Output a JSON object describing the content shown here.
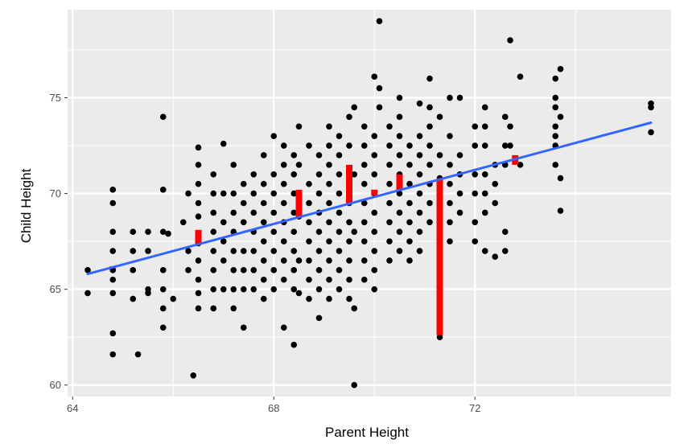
{
  "chart_data": {
    "type": "scatter",
    "xlabel": "Parent Height",
    "ylabel": "Child Height",
    "xlim": [
      63.9,
      75.9
    ],
    "ylim": [
      59.4,
      79.6
    ],
    "x_ticks": [
      64,
      68,
      72
    ],
    "x_tick_labels": [
      "64",
      "68",
      "72"
    ],
    "y_ticks": [
      60,
      65,
      70,
      75
    ],
    "y_tick_labels": [
      "60",
      "65",
      "70",
      "75"
    ],
    "grid": true,
    "legend": "none",
    "colors": {
      "panel": "#ebebeb",
      "grid": "#ffffff",
      "points": "#000000",
      "fit_line": "#3366ff",
      "residuals": "#ff0000"
    },
    "fit_line": {
      "x": [
        64.3,
        75.5
      ],
      "y": [
        65.8,
        73.7
      ]
    },
    "residual_segments": [
      {
        "x": 64.8,
        "y_from": 66.1,
        "y_to": 66.2
      },
      {
        "x": 66.5,
        "y_from": 67.4,
        "y_to": 68.1
      },
      {
        "x": 68.5,
        "y_from": 68.8,
        "y_to": 70.2
      },
      {
        "x": 69.5,
        "y_from": 69.5,
        "y_to": 71.5
      },
      {
        "x": 70.0,
        "y_from": 69.9,
        "y_to": 70.2
      },
      {
        "x": 70.5,
        "y_from": 70.2,
        "y_to": 71.0
      },
      {
        "x": 71.3,
        "y_from": 62.6,
        "y_to": 70.8
      },
      {
        "x": 72.8,
        "y_from": 71.5,
        "y_to": 72.0
      }
    ],
    "points": [
      [
        64.3,
        66.0
      ],
      [
        64.3,
        64.8
      ],
      [
        64.8,
        70.2
      ],
      [
        64.8,
        69.5
      ],
      [
        64.8,
        68.0
      ],
      [
        64.8,
        67.0
      ],
      [
        64.8,
        66.0
      ],
      [
        64.8,
        65.5
      ],
      [
        64.8,
        64.8
      ],
      [
        64.8,
        62.7
      ],
      [
        64.8,
        61.6
      ],
      [
        65.2,
        68.0
      ],
      [
        65.2,
        67.0
      ],
      [
        65.2,
        66.0
      ],
      [
        65.2,
        64.5
      ],
      [
        65.3,
        61.6
      ],
      [
        65.5,
        68.0
      ],
      [
        65.5,
        67.0
      ],
      [
        65.5,
        65.0
      ],
      [
        65.5,
        64.8
      ],
      [
        65.8,
        74.0
      ],
      [
        65.8,
        70.2
      ],
      [
        65.8,
        68.0
      ],
      [
        65.8,
        66.0
      ],
      [
        65.8,
        65.0
      ],
      [
        65.8,
        64.0
      ],
      [
        65.8,
        63.0
      ],
      [
        65.9,
        67.9
      ],
      [
        66.0,
        64.5
      ],
      [
        66.2,
        68.5
      ],
      [
        66.3,
        70.0
      ],
      [
        66.3,
        67.0
      ],
      [
        66.3,
        66.0
      ],
      [
        66.5,
        72.4
      ],
      [
        66.5,
        71.5
      ],
      [
        66.5,
        70.5
      ],
      [
        66.5,
        69.5
      ],
      [
        66.5,
        68.8
      ],
      [
        66.5,
        67.4
      ],
      [
        66.5,
        66.5
      ],
      [
        66.5,
        65.5
      ],
      [
        66.5,
        64.8
      ],
      [
        66.5,
        64.0
      ],
      [
        66.4,
        60.5
      ],
      [
        66.8,
        71.0
      ],
      [
        66.8,
        70.0
      ],
      [
        66.8,
        69.0
      ],
      [
        66.8,
        68.0
      ],
      [
        66.8,
        67.0
      ],
      [
        66.8,
        66.0
      ],
      [
        66.8,
        65.0
      ],
      [
        66.8,
        64.0
      ],
      [
        67.0,
        72.6
      ],
      [
        67.0,
        70.0
      ],
      [
        67.0,
        68.5
      ],
      [
        67.0,
        67.5
      ],
      [
        67.0,
        66.5
      ],
      [
        67.0,
        65.0
      ],
      [
        67.2,
        71.5
      ],
      [
        67.2,
        70.0
      ],
      [
        67.2,
        69.0
      ],
      [
        67.2,
        68.0
      ],
      [
        67.2,
        67.0
      ],
      [
        67.2,
        66.0
      ],
      [
        67.2,
        65.0
      ],
      [
        67.2,
        64.0
      ],
      [
        67.4,
        70.5
      ],
      [
        67.4,
        69.5
      ],
      [
        67.4,
        68.5
      ],
      [
        67.4,
        67.0
      ],
      [
        67.4,
        66.0
      ],
      [
        67.4,
        65.0
      ],
      [
        67.4,
        63.0
      ],
      [
        67.6,
        71.0
      ],
      [
        67.6,
        70.0
      ],
      [
        67.6,
        69.0
      ],
      [
        67.6,
        68.0
      ],
      [
        67.6,
        67.0
      ],
      [
        67.6,
        66.0
      ],
      [
        67.6,
        65.0
      ],
      [
        67.8,
        72.0
      ],
      [
        67.8,
        70.5
      ],
      [
        67.8,
        69.5
      ],
      [
        67.8,
        68.5
      ],
      [
        67.8,
        67.5
      ],
      [
        67.8,
        66.5
      ],
      [
        67.8,
        65.5
      ],
      [
        67.8,
        64.5
      ],
      [
        68.0,
        73.0
      ],
      [
        68.0,
        71.0
      ],
      [
        68.0,
        70.0
      ],
      [
        68.0,
        69.0
      ],
      [
        68.0,
        68.0
      ],
      [
        68.0,
        67.0
      ],
      [
        68.0,
        66.0
      ],
      [
        68.0,
        65.0
      ],
      [
        68.2,
        72.5
      ],
      [
        68.2,
        71.5
      ],
      [
        68.2,
        70.5
      ],
      [
        68.2,
        69.5
      ],
      [
        68.2,
        68.5
      ],
      [
        68.2,
        67.5
      ],
      [
        68.2,
        66.5
      ],
      [
        68.2,
        65.5
      ],
      [
        68.2,
        63.0
      ],
      [
        68.4,
        72.0
      ],
      [
        68.4,
        71.0
      ],
      [
        68.4,
        70.0
      ],
      [
        68.4,
        69.0
      ],
      [
        68.4,
        68.0
      ],
      [
        68.4,
        67.0
      ],
      [
        68.4,
        66.0
      ],
      [
        68.4,
        65.0
      ],
      [
        68.4,
        62.1
      ],
      [
        68.5,
        73.5
      ],
      [
        68.5,
        71.5
      ],
      [
        68.5,
        68.8
      ],
      [
        68.5,
        66.5
      ],
      [
        68.5,
        64.8
      ],
      [
        68.7,
        72.5
      ],
      [
        68.7,
        70.5
      ],
      [
        68.7,
        69.5
      ],
      [
        68.7,
        68.5
      ],
      [
        68.7,
        67.5
      ],
      [
        68.7,
        66.5
      ],
      [
        68.7,
        65.5
      ],
      [
        68.7,
        64.5
      ],
      [
        68.9,
        72.0
      ],
      [
        68.9,
        71.0
      ],
      [
        68.9,
        70.0
      ],
      [
        68.9,
        69.0
      ],
      [
        68.9,
        68.0
      ],
      [
        68.9,
        67.0
      ],
      [
        68.9,
        66.0
      ],
      [
        68.9,
        65.0
      ],
      [
        68.9,
        63.5
      ],
      [
        69.1,
        73.5
      ],
      [
        69.1,
        72.5
      ],
      [
        69.1,
        71.5
      ],
      [
        69.1,
        70.5
      ],
      [
        69.1,
        69.5
      ],
      [
        69.1,
        68.5
      ],
      [
        69.1,
        67.5
      ],
      [
        69.1,
        66.5
      ],
      [
        69.1,
        65.5
      ],
      [
        69.1,
        64.5
      ],
      [
        69.3,
        73.0
      ],
      [
        69.3,
        72.0
      ],
      [
        69.3,
        71.0
      ],
      [
        69.3,
        70.0
      ],
      [
        69.3,
        69.0
      ],
      [
        69.3,
        68.0
      ],
      [
        69.3,
        67.0
      ],
      [
        69.3,
        66.0
      ],
      [
        69.3,
        65.0
      ],
      [
        69.5,
        74.0
      ],
      [
        69.5,
        72.5
      ],
      [
        69.5,
        70.5
      ],
      [
        69.5,
        69.5
      ],
      [
        69.5,
        68.5
      ],
      [
        69.5,
        67.5
      ],
      [
        69.5,
        66.5
      ],
      [
        69.5,
        65.5
      ],
      [
        69.5,
        64.5
      ],
      [
        69.6,
        74.5
      ],
      [
        69.6,
        71.0
      ],
      [
        69.6,
        68.0
      ],
      [
        69.6,
        64.0
      ],
      [
        69.6,
        60.0
      ],
      [
        69.8,
        73.5
      ],
      [
        69.8,
        72.5
      ],
      [
        69.8,
        71.5
      ],
      [
        69.8,
        70.5
      ],
      [
        69.8,
        69.5
      ],
      [
        69.8,
        68.5
      ],
      [
        69.8,
        67.5
      ],
      [
        69.8,
        66.5
      ],
      [
        69.8,
        65.5
      ],
      [
        70.0,
        76.1
      ],
      [
        70.0,
        73.0
      ],
      [
        70.0,
        72.0
      ],
      [
        70.0,
        71.0
      ],
      [
        70.0,
        70.0
      ],
      [
        70.0,
        69.0
      ],
      [
        70.0,
        68.0
      ],
      [
        70.0,
        67.0
      ],
      [
        70.0,
        66.0
      ],
      [
        70.0,
        65.0
      ],
      [
        70.1,
        79.0
      ],
      [
        70.1,
        75.5
      ],
      [
        70.1,
        74.5
      ],
      [
        70.3,
        73.5
      ],
      [
        70.3,
        72.5
      ],
      [
        70.3,
        71.5
      ],
      [
        70.3,
        70.5
      ],
      [
        70.3,
        69.5
      ],
      [
        70.3,
        68.5
      ],
      [
        70.3,
        67.5
      ],
      [
        70.3,
        66.5
      ],
      [
        70.5,
        75.0
      ],
      [
        70.5,
        74.0
      ],
      [
        70.5,
        73.0
      ],
      [
        70.5,
        72.0
      ],
      [
        70.5,
        71.0
      ],
      [
        70.5,
        70.0
      ],
      [
        70.5,
        69.0
      ],
      [
        70.5,
        68.0
      ],
      [
        70.5,
        67.0
      ],
      [
        70.7,
        72.5
      ],
      [
        70.7,
        71.5
      ],
      [
        70.7,
        70.5
      ],
      [
        70.7,
        69.5
      ],
      [
        70.7,
        68.5
      ],
      [
        70.7,
        67.5
      ],
      [
        70.7,
        66.5
      ],
      [
        70.9,
        74.7
      ],
      [
        70.9,
        73.0
      ],
      [
        70.9,
        72.0
      ],
      [
        70.9,
        71.0
      ],
      [
        70.9,
        70.0
      ],
      [
        70.9,
        69.0
      ],
      [
        70.9,
        68.0
      ],
      [
        70.9,
        67.0
      ],
      [
        71.1,
        76.0
      ],
      [
        71.1,
        74.5
      ],
      [
        71.1,
        73.5
      ],
      [
        71.1,
        72.5
      ],
      [
        71.1,
        71.5
      ],
      [
        71.1,
        70.5
      ],
      [
        71.1,
        69.5
      ],
      [
        71.1,
        68.5
      ],
      [
        71.3,
        74.0
      ],
      [
        71.3,
        72.0
      ],
      [
        71.3,
        70.8
      ],
      [
        71.3,
        70.0
      ],
      [
        71.3,
        69.0
      ],
      [
        71.3,
        62.5
      ],
      [
        71.5,
        75.0
      ],
      [
        71.5,
        73.0
      ],
      [
        71.5,
        71.5
      ],
      [
        71.5,
        70.5
      ],
      [
        71.5,
        69.5
      ],
      [
        71.5,
        68.5
      ],
      [
        71.5,
        67.5
      ],
      [
        71.7,
        75.0
      ],
      [
        71.7,
        72.0
      ],
      [
        71.7,
        71.0
      ],
      [
        71.7,
        70.0
      ],
      [
        71.7,
        69.0
      ],
      [
        72.0,
        73.5
      ],
      [
        72.0,
        72.5
      ],
      [
        72.0,
        71.0
      ],
      [
        72.0,
        70.0
      ],
      [
        72.0,
        68.5
      ],
      [
        72.0,
        67.5
      ],
      [
        72.2,
        74.5
      ],
      [
        72.2,
        73.5
      ],
      [
        72.2,
        72.5
      ],
      [
        72.2,
        71.0
      ],
      [
        72.2,
        70.0
      ],
      [
        72.2,
        69.0
      ],
      [
        72.2,
        67.0
      ],
      [
        72.4,
        71.5
      ],
      [
        72.4,
        70.5
      ],
      [
        72.4,
        69.5
      ],
      [
        72.4,
        66.7
      ],
      [
        72.6,
        74.0
      ],
      [
        72.6,
        72.5
      ],
      [
        72.6,
        71.5
      ],
      [
        72.6,
        68.0
      ],
      [
        72.6,
        67.0
      ],
      [
        72.7,
        78.0
      ],
      [
        72.7,
        73.5
      ],
      [
        72.7,
        72.5
      ],
      [
        72.9,
        76.1
      ],
      [
        72.9,
        71.5
      ],
      [
        73.6,
        76.0
      ],
      [
        73.6,
        75.0
      ],
      [
        73.6,
        74.5
      ],
      [
        73.6,
        73.5
      ],
      [
        73.6,
        73.0
      ],
      [
        73.6,
        72.5
      ],
      [
        73.6,
        71.5
      ],
      [
        73.7,
        76.5
      ],
      [
        73.7,
        74.0
      ],
      [
        73.7,
        70.8
      ],
      [
        73.7,
        69.1
      ],
      [
        75.5,
        74.7
      ],
      [
        75.5,
        74.5
      ],
      [
        75.5,
        73.2
      ]
    ]
  }
}
